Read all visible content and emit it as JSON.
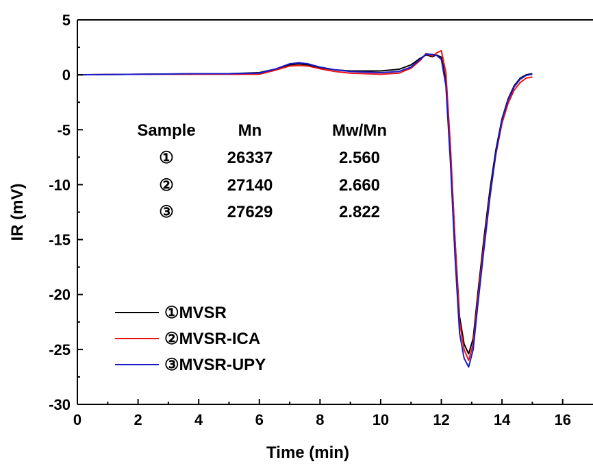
{
  "chart_data": {
    "type": "line",
    "title": "",
    "xlabel": "Time (min)",
    "ylabel": "IR (mV)",
    "xlim": [
      0,
      17
    ],
    "ylim": [
      -30,
      5
    ],
    "xticks": [
      0,
      2,
      4,
      6,
      8,
      10,
      12,
      14,
      16
    ],
    "yticks": [
      5,
      0,
      -5,
      -10,
      -15,
      -20,
      -25,
      -30
    ],
    "grid": false,
    "legend_position": "bottom-left",
    "series": [
      {
        "name": "①MVSR",
        "color": "#000000",
        "x": [
          0,
          2,
          4,
          5,
          6,
          6.5,
          7,
          7.3,
          7.6,
          8,
          8.5,
          9,
          10,
          10.6,
          11,
          11.3,
          11.5,
          11.7,
          11.85,
          12.0,
          12.15,
          12.3,
          12.45,
          12.6,
          12.75,
          12.9,
          13.05,
          13.2,
          13.4,
          13.6,
          13.8,
          14.0,
          14.2,
          14.4,
          14.6,
          14.8,
          15.0
        ],
        "y": [
          0,
          0.05,
          0.1,
          0.1,
          0.2,
          0.5,
          0.9,
          1.0,
          0.9,
          0.65,
          0.45,
          0.35,
          0.35,
          0.5,
          0.9,
          1.5,
          1.8,
          1.65,
          1.8,
          1.6,
          -0.5,
          -7,
          -15,
          -22,
          -24.5,
          -25.4,
          -24,
          -20,
          -15,
          -10.5,
          -6.8,
          -4,
          -2.2,
          -1,
          -0.3,
          0,
          0.1
        ]
      },
      {
        "name": "②MVSR-ICA",
        "color": "#ee1111",
        "x": [
          0,
          2,
          4,
          5,
          6,
          6.5,
          7,
          7.3,
          7.6,
          8,
          8.5,
          9,
          10,
          10.6,
          11,
          11.3,
          11.5,
          11.7,
          11.85,
          12.0,
          12.15,
          12.3,
          12.45,
          12.6,
          12.75,
          12.9,
          13.05,
          13.2,
          13.4,
          13.6,
          13.8,
          14.0,
          14.2,
          14.4,
          14.6,
          14.8,
          15.0
        ],
        "y": [
          0,
          0.05,
          0.05,
          0.05,
          0.05,
          0.4,
          0.8,
          0.85,
          0.8,
          0.55,
          0.3,
          0.15,
          0.05,
          0.15,
          0.6,
          1.3,
          1.95,
          1.7,
          2.0,
          2.2,
          0.2,
          -6.5,
          -15,
          -22.5,
          -25,
          -26.0,
          -24.5,
          -20.5,
          -15.5,
          -11,
          -7.2,
          -4.4,
          -2.6,
          -1.4,
          -0.7,
          -0.3,
          -0.2
        ]
      },
      {
        "name": "③MVSR-UPY",
        "color": "#1a1acc",
        "x": [
          0,
          2,
          4,
          5,
          6,
          6.5,
          7,
          7.3,
          7.6,
          8,
          8.5,
          9,
          10,
          10.6,
          11,
          11.3,
          11.5,
          11.7,
          11.85,
          12.0,
          12.15,
          12.3,
          12.45,
          12.6,
          12.75,
          12.9,
          13.05,
          13.2,
          13.4,
          13.6,
          13.8,
          14.0,
          14.2,
          14.4,
          14.6,
          14.8,
          15.0
        ],
        "y": [
          0,
          0.05,
          0.1,
          0.1,
          0.15,
          0.5,
          1.0,
          1.1,
          1.0,
          0.7,
          0.45,
          0.3,
          0.2,
          0.3,
          0.7,
          1.4,
          1.9,
          1.85,
          1.75,
          1.4,
          -1.0,
          -8,
          -16.5,
          -23.5,
          -25.8,
          -26.6,
          -25,
          -21,
          -16,
          -11.2,
          -7.1,
          -4.1,
          -2.3,
          -1.1,
          -0.4,
          -0.05,
          0.05
        ]
      }
    ],
    "table": {
      "headers": [
        "Sample",
        "Mn",
        "Mw/Mn"
      ],
      "rows": [
        [
          "①",
          "26337",
          "2.560"
        ],
        [
          "②",
          "27140",
          "2.660"
        ],
        [
          "③",
          "27629",
          "2.822"
        ]
      ]
    }
  }
}
